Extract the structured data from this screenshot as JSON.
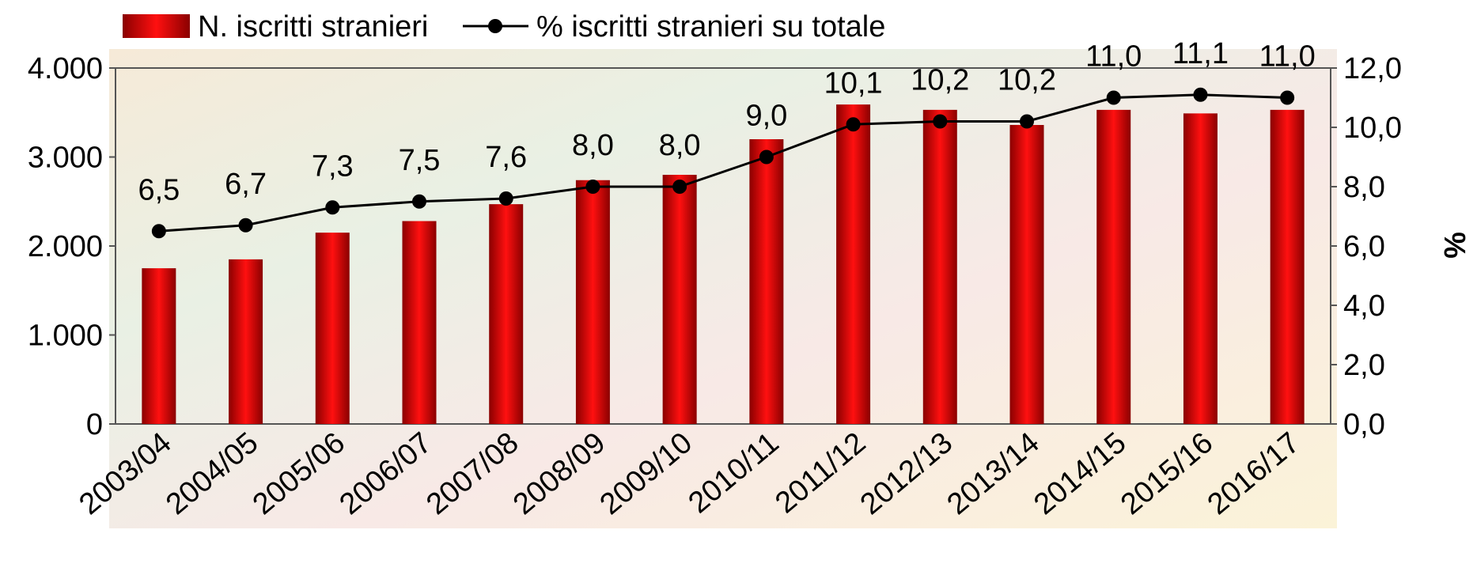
{
  "chart_data": {
    "type": "bar-line",
    "categories": [
      "2003/04",
      "2004/05",
      "2005/06",
      "2006/07",
      "2007/08",
      "2008/09",
      "2009/10",
      "2010/11",
      "2011/12",
      "2012/13",
      "2013/14",
      "2014/15",
      "2015/16",
      "2016/17"
    ],
    "series": [
      {
        "name": "N. iscritti stranieri",
        "type": "bar",
        "color": "#e00000",
        "values": [
          1750,
          1850,
          2150,
          2280,
          2470,
          2740,
          2800,
          3200,
          3590,
          3530,
          3360,
          3530,
          3490,
          3530
        ]
      },
      {
        "name": "% iscritti stranieri su totale",
        "type": "line",
        "axis": "y2",
        "color": "#000000",
        "values": [
          6.5,
          6.7,
          7.3,
          7.5,
          7.6,
          8.0,
          8.0,
          9.0,
          10.1,
          10.2,
          10.2,
          11.0,
          11.1,
          11.0
        ],
        "value_labels": [
          "6,5",
          "6,7",
          "7,3",
          "7,5",
          "7,6",
          "8,0",
          "8,0",
          "9,0",
          "10,1",
          "10,2",
          "10,2",
          "11,0",
          "11,1",
          "11,0"
        ]
      }
    ],
    "ylim": [
      0,
      4000
    ],
    "yticks": [
      {
        "value": 0,
        "label": "0"
      },
      {
        "value": 1000,
        "label": "1.000"
      },
      {
        "value": 2000,
        "label": "2.000"
      },
      {
        "value": 3000,
        "label": "3.000"
      },
      {
        "value": 4000,
        "label": "4.000"
      }
    ],
    "y2lim": [
      0,
      12
    ],
    "y2ticks": [
      {
        "value": 0,
        "label": "0,0"
      },
      {
        "value": 2,
        "label": "2,0"
      },
      {
        "value": 4,
        "label": "4,0"
      },
      {
        "value": 6,
        "label": "6,0"
      },
      {
        "value": 8,
        "label": "8,0"
      },
      {
        "value": 10,
        "label": "10,0"
      },
      {
        "value": 12,
        "label": "12,0"
      }
    ],
    "y2label": "%"
  }
}
